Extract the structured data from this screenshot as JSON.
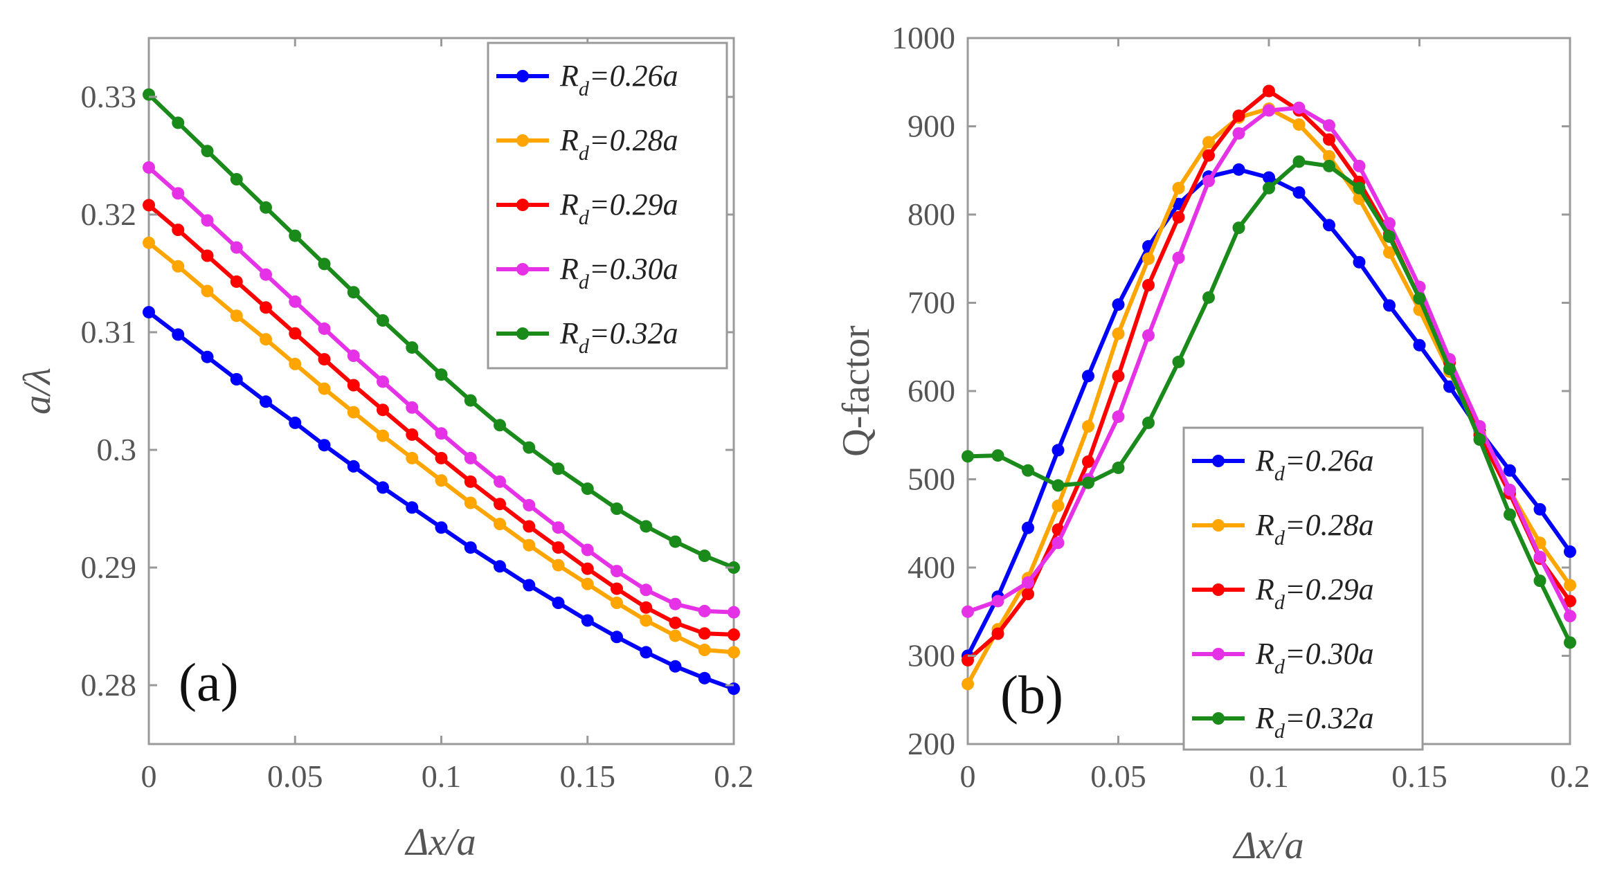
{
  "chart_data": [
    {
      "type": "line",
      "panel": "(a)",
      "xlabel": "Δx/a",
      "ylabel": "a/λ",
      "xlim": [
        0,
        0.2
      ],
      "ylim": [
        0.275,
        0.335
      ],
      "xticks": [
        0,
        0.05,
        0.1,
        0.15,
        0.2
      ],
      "xtick_labels": [
        "0",
        "0.05",
        "0.1",
        "0.15",
        "0.2"
      ],
      "yticks": [
        0.28,
        0.29,
        0.3,
        0.31,
        0.32,
        0.33
      ],
      "ytick_labels": [
        "0.28",
        "0.29",
        "0.3",
        "0.31",
        "0.32",
        "0.33"
      ],
      "legend_position": "top-right",
      "x": [
        0,
        0.01,
        0.02,
        0.03,
        0.04,
        0.05,
        0.06,
        0.07,
        0.08,
        0.09,
        0.1,
        0.11,
        0.12,
        0.13,
        0.14,
        0.15,
        0.16,
        0.17,
        0.18,
        0.19,
        0.2
      ],
      "series": [
        {
          "name": "Rd=0.26a",
          "legend_main": "R",
          "legend_sub": "d",
          "legend_rest": "=0.26a",
          "color": "#0000ff",
          "values": [
            0.3117,
            0.3098,
            0.3079,
            0.306,
            0.3041,
            0.3023,
            0.3004,
            0.2986,
            0.2968,
            0.2951,
            0.2934,
            0.2917,
            0.2901,
            0.2885,
            0.287,
            0.2855,
            0.2841,
            0.2828,
            0.2816,
            0.2806,
            0.2797
          ]
        },
        {
          "name": "Rd=0.28a",
          "legend_main": "R",
          "legend_sub": "d",
          "legend_rest": "=0.28a",
          "color": "#ffa500",
          "values": [
            0.3176,
            0.3156,
            0.3135,
            0.3114,
            0.3094,
            0.3073,
            0.3052,
            0.3032,
            0.3012,
            0.2993,
            0.2974,
            0.2955,
            0.2937,
            0.2919,
            0.2902,
            0.2886,
            0.287,
            0.2855,
            0.2842,
            0.283,
            0.2828
          ]
        },
        {
          "name": "Rd=0.29a",
          "legend_main": "R",
          "legend_sub": "d",
          "legend_rest": "=0.29a",
          "color": "#ff0000",
          "values": [
            0.3208,
            0.3187,
            0.3165,
            0.3143,
            0.3121,
            0.3099,
            0.3077,
            0.3055,
            0.3034,
            0.3013,
            0.2993,
            0.2973,
            0.2954,
            0.2935,
            0.2917,
            0.2899,
            0.2882,
            0.2866,
            0.2853,
            0.2844,
            0.2843
          ]
        },
        {
          "name": "Rd=0.30a",
          "legend_main": "R",
          "legend_sub": "d",
          "legend_rest": "=0.30a",
          "color": "#e632e6",
          "values": [
            0.324,
            0.3218,
            0.3195,
            0.3172,
            0.3149,
            0.3126,
            0.3103,
            0.308,
            0.3058,
            0.3036,
            0.3014,
            0.2993,
            0.2973,
            0.2953,
            0.2934,
            0.2915,
            0.2897,
            0.2881,
            0.2869,
            0.2863,
            0.2862
          ]
        },
        {
          "name": "Rd=0.32a",
          "legend_main": "R",
          "legend_sub": "d",
          "legend_rest": "=0.32a",
          "color": "#1a8a1a",
          "values": [
            0.3302,
            0.3278,
            0.3254,
            0.323,
            0.3206,
            0.3182,
            0.3158,
            0.3134,
            0.311,
            0.3087,
            0.3064,
            0.3042,
            0.3021,
            0.3002,
            0.2984,
            0.2967,
            0.295,
            0.2935,
            0.2922,
            0.291,
            0.29
          ]
        }
      ]
    },
    {
      "type": "line",
      "panel": "(b)",
      "xlabel": "Δx/a",
      "ylabel": "Q-factor",
      "xlim": [
        0,
        0.2
      ],
      "ylim": [
        200,
        1000
      ],
      "xticks": [
        0,
        0.05,
        0.1,
        0.15,
        0.2
      ],
      "xtick_labels": [
        "0",
        "0.05",
        "0.1",
        "0.15",
        "0.2"
      ],
      "yticks": [
        200,
        300,
        400,
        500,
        600,
        700,
        800,
        900,
        1000
      ],
      "ytick_labels": [
        "200",
        "300",
        "400",
        "500",
        "600",
        "700",
        "800",
        "900",
        "1000"
      ],
      "legend_position": "bottom-right",
      "x": [
        0,
        0.01,
        0.02,
        0.03,
        0.04,
        0.05,
        0.06,
        0.07,
        0.08,
        0.09,
        0.1,
        0.11,
        0.12,
        0.13,
        0.14,
        0.15,
        0.16,
        0.17,
        0.18,
        0.19,
        0.2
      ],
      "series": [
        {
          "name": "Rd=0.26a",
          "legend_main": "R",
          "legend_sub": "d",
          "legend_rest": "=0.26a",
          "color": "#0000ff",
          "values": [
            300,
            367,
            445,
            533,
            617,
            698,
            764,
            812,
            843,
            851,
            842,
            825,
            788,
            746,
            697,
            652,
            605,
            555,
            510,
            466,
            418
          ]
        },
        {
          "name": "Rd=0.28a",
          "legend_main": "R",
          "legend_sub": "d",
          "legend_rest": "=0.28a",
          "color": "#ffa500",
          "values": [
            268,
            330,
            388,
            470,
            560,
            665,
            750,
            830,
            882,
            910,
            920,
            902,
            866,
            818,
            757,
            692,
            622,
            552,
            487,
            428,
            380
          ]
        },
        {
          "name": "Rd=0.29a",
          "legend_main": "R",
          "legend_sub": "d",
          "legend_rest": "=0.29a",
          "color": "#ff0000",
          "values": [
            295,
            325,
            370,
            443,
            520,
            617,
            720,
            797,
            867,
            912,
            940,
            918,
            885,
            837,
            778,
            705,
            632,
            550,
            484,
            410,
            362
          ]
        },
        {
          "name": "Rd=0.30a",
          "legend_main": "R",
          "legend_sub": "d",
          "legend_rest": "=0.30a",
          "color": "#e632e6",
          "values": [
            350,
            362,
            383,
            428,
            500,
            571,
            663,
            751,
            838,
            892,
            918,
            921,
            901,
            855,
            790,
            718,
            636,
            560,
            488,
            412,
            345
          ]
        },
        {
          "name": "Rd=0.32a",
          "legend_main": "R",
          "legend_sub": "d",
          "legend_rest": "=0.32a",
          "color": "#1a8a1a",
          "values": [
            526,
            527,
            510,
            493,
            496,
            513,
            564,
            633,
            706,
            785,
            830,
            860,
            855,
            830,
            775,
            705,
            625,
            545,
            460,
            385,
            315
          ]
        }
      ]
    }
  ]
}
